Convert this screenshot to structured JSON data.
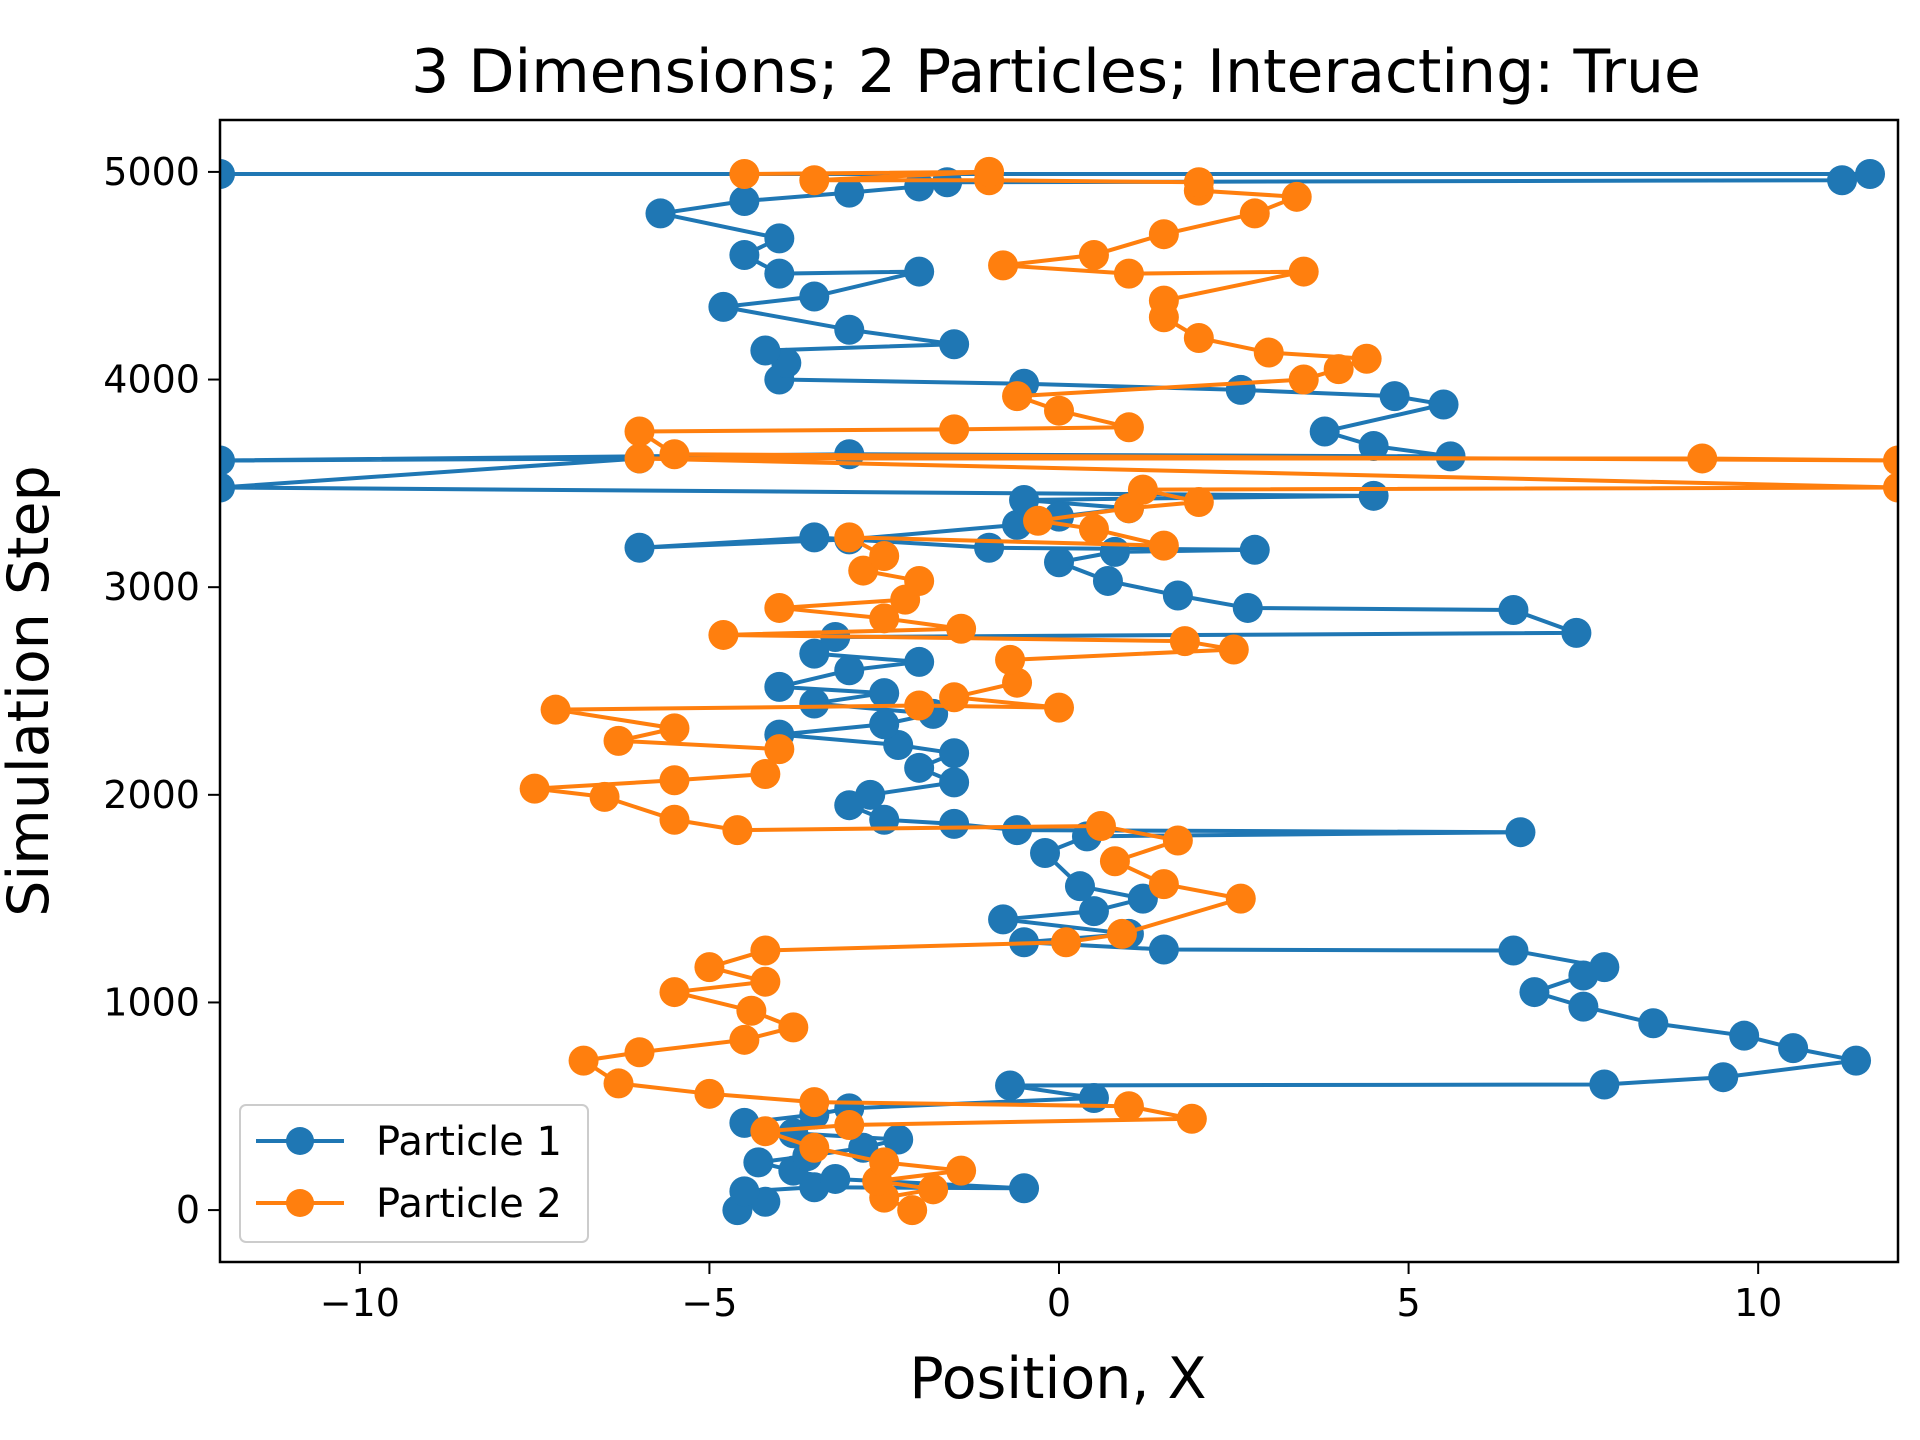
{
  "chart_data": {
    "type": "line",
    "title": "3 Dimensions; 2 Particles; Interacting: True",
    "xlabel": "Position, X",
    "ylabel": "Simulation Step",
    "xlim": [
      -12,
      12
    ],
    "ylim": [
      -250,
      5250
    ],
    "xticks": [
      -10,
      -5,
      0,
      5,
      10
    ],
    "xtick_labels": [
      "−10",
      "−5",
      "0",
      "5",
      "10"
    ],
    "yticks": [
      0,
      1000,
      2000,
      3000,
      4000,
      5000
    ],
    "ytick_labels": [
      "0",
      "1000",
      "2000",
      "3000",
      "4000",
      "5000"
    ],
    "grid": false,
    "legend_position": "lower-left",
    "markers": true,
    "series": [
      {
        "name": "Particle 1",
        "color": "#1f77b4",
        "points": [
          [
            -4.6,
            0
          ],
          [
            -4.2,
            40
          ],
          [
            -4.5,
            90
          ],
          [
            -3.5,
            110
          ],
          [
            -0.5,
            105
          ],
          [
            -3.2,
            150
          ],
          [
            -3.8,
            190
          ],
          [
            -4.3,
            230
          ],
          [
            -3.6,
            260
          ],
          [
            -2.8,
            300
          ],
          [
            -2.3,
            340
          ],
          [
            -3.8,
            370
          ],
          [
            -4.5,
            420
          ],
          [
            -3.5,
            460
          ],
          [
            -3.0,
            490
          ],
          [
            0.5,
            540
          ],
          [
            -0.7,
            600
          ],
          [
            7.8,
            605
          ],
          [
            9.5,
            640
          ],
          [
            11.4,
            720
          ],
          [
            10.5,
            780
          ],
          [
            9.8,
            840
          ],
          [
            8.5,
            900
          ],
          [
            7.5,
            980
          ],
          [
            6.8,
            1050
          ],
          [
            7.5,
            1130
          ],
          [
            7.8,
            1170
          ],
          [
            6.5,
            1250
          ],
          [
            1.5,
            1255
          ],
          [
            -0.5,
            1290
          ],
          [
            1.0,
            1330
          ],
          [
            -0.8,
            1400
          ],
          [
            0.5,
            1440
          ],
          [
            1.2,
            1500
          ],
          [
            0.3,
            1560
          ],
          [
            -0.2,
            1720
          ],
          [
            0.4,
            1800
          ],
          [
            6.6,
            1820
          ],
          [
            -0.6,
            1830
          ],
          [
            -1.5,
            1860
          ],
          [
            -2.5,
            1880
          ],
          [
            -3.0,
            1950
          ],
          [
            -2.7,
            2000
          ],
          [
            -1.5,
            2060
          ],
          [
            -2.0,
            2130
          ],
          [
            -1.5,
            2200
          ],
          [
            -2.3,
            2240
          ],
          [
            -4.0,
            2290
          ],
          [
            -2.5,
            2340
          ],
          [
            -1.8,
            2390
          ],
          [
            -3.5,
            2440
          ],
          [
            -2.5,
            2490
          ],
          [
            -4.0,
            2520
          ],
          [
            -3.0,
            2600
          ],
          [
            -2.0,
            2640
          ],
          [
            -3.5,
            2680
          ],
          [
            -3.2,
            2760
          ],
          [
            7.4,
            2780
          ],
          [
            6.5,
            2890
          ],
          [
            2.7,
            2900
          ],
          [
            1.7,
            2960
          ],
          [
            0.7,
            3030
          ],
          [
            0.0,
            3120
          ],
          [
            0.8,
            3170
          ],
          [
            2.8,
            3180
          ],
          [
            -1.0,
            3190
          ],
          [
            -3.5,
            3240
          ],
          [
            -6.0,
            3190
          ],
          [
            -3.0,
            3230
          ],
          [
            -0.6,
            3300
          ],
          [
            0.0,
            3340
          ],
          [
            1.0,
            3380
          ],
          [
            -0.5,
            3420
          ],
          [
            4.5,
            3440
          ],
          [
            -12.0,
            3480
          ],
          [
            -6.0,
            3620
          ],
          [
            -12.0,
            3610
          ],
          [
            -3.0,
            3640
          ],
          [
            5.6,
            3630
          ],
          [
            4.5,
            3680
          ],
          [
            3.8,
            3750
          ],
          [
            5.5,
            3880
          ],
          [
            4.8,
            3920
          ],
          [
            2.6,
            3950
          ],
          [
            -0.5,
            3980
          ],
          [
            -4.0,
            4000
          ],
          [
            -3.9,
            4080
          ],
          [
            -4.2,
            4140
          ],
          [
            -1.5,
            4170
          ],
          [
            -3.0,
            4240
          ],
          [
            -4.8,
            4350
          ],
          [
            -3.5,
            4400
          ],
          [
            -2.0,
            4520
          ],
          [
            -4.0,
            4510
          ],
          [
            -4.5,
            4600
          ],
          [
            -4.0,
            4680
          ],
          [
            -5.7,
            4800
          ],
          [
            -4.5,
            4860
          ],
          [
            -3.0,
            4900
          ],
          [
            -2.0,
            4930
          ],
          [
            -1.6,
            4950
          ],
          [
            11.2,
            4960
          ],
          [
            11.6,
            4990
          ],
          [
            -12.0,
            4990
          ]
        ]
      },
      {
        "name": "Particle 2",
        "color": "#ff7f0e",
        "points": [
          [
            -2.1,
            0
          ],
          [
            -2.5,
            60
          ],
          [
            -1.8,
            100
          ],
          [
            -2.6,
            140
          ],
          [
            -1.4,
            190
          ],
          [
            -2.5,
            230
          ],
          [
            -3.5,
            300
          ],
          [
            -4.2,
            380
          ],
          [
            -3.0,
            410
          ],
          [
            1.9,
            440
          ],
          [
            1.0,
            500
          ],
          [
            -3.5,
            520
          ],
          [
            -5.0,
            560
          ],
          [
            -6.3,
            610
          ],
          [
            -6.8,
            720
          ],
          [
            -6.0,
            760
          ],
          [
            -4.5,
            820
          ],
          [
            -3.8,
            880
          ],
          [
            -4.4,
            960
          ],
          [
            -5.5,
            1050
          ],
          [
            -4.2,
            1100
          ],
          [
            -5.0,
            1170
          ],
          [
            -4.2,
            1250
          ],
          [
            0.1,
            1290
          ],
          [
            0.9,
            1330
          ],
          [
            2.6,
            1500
          ],
          [
            1.5,
            1570
          ],
          [
            0.8,
            1680
          ],
          [
            1.7,
            1780
          ],
          [
            0.6,
            1850
          ],
          [
            -4.6,
            1830
          ],
          [
            -5.5,
            1880
          ],
          [
            -6.5,
            1990
          ],
          [
            -7.5,
            2030
          ],
          [
            -5.5,
            2070
          ],
          [
            -4.2,
            2100
          ],
          [
            -4.0,
            2220
          ],
          [
            -6.3,
            2260
          ],
          [
            -5.5,
            2320
          ],
          [
            -7.2,
            2410
          ],
          [
            -2.0,
            2430
          ],
          [
            0.0,
            2420
          ],
          [
            -1.5,
            2470
          ],
          [
            -0.6,
            2540
          ],
          [
            -0.7,
            2650
          ],
          [
            2.5,
            2700
          ],
          [
            1.8,
            2740
          ],
          [
            -4.8,
            2770
          ],
          [
            -1.4,
            2800
          ],
          [
            -2.5,
            2850
          ],
          [
            -4.0,
            2900
          ],
          [
            -2.2,
            2940
          ],
          [
            -2.0,
            3030
          ],
          [
            -2.8,
            3080
          ],
          [
            -2.5,
            3150
          ],
          [
            -3.0,
            3240
          ],
          [
            1.5,
            3200
          ],
          [
            0.5,
            3280
          ],
          [
            -0.3,
            3320
          ],
          [
            1.0,
            3380
          ],
          [
            2.0,
            3410
          ],
          [
            1.2,
            3470
          ],
          [
            12.0,
            3480
          ],
          [
            -6.0,
            3620
          ],
          [
            9.2,
            3620
          ],
          [
            12.0,
            3610
          ],
          [
            -5.5,
            3640
          ],
          [
            -6.0,
            3750
          ],
          [
            -1.5,
            3760
          ],
          [
            1.0,
            3770
          ],
          [
            0.0,
            3850
          ],
          [
            -0.6,
            3920
          ],
          [
            3.5,
            4000
          ],
          [
            4.0,
            4050
          ],
          [
            4.4,
            4100
          ],
          [
            3.0,
            4130
          ],
          [
            2.0,
            4200
          ],
          [
            1.5,
            4300
          ],
          [
            1.5,
            4380
          ],
          [
            3.5,
            4520
          ],
          [
            1.0,
            4510
          ],
          [
            -0.8,
            4550
          ],
          [
            0.5,
            4600
          ],
          [
            1.5,
            4700
          ],
          [
            2.8,
            4800
          ],
          [
            3.4,
            4880
          ],
          [
            2.0,
            4910
          ],
          [
            2.0,
            4950
          ],
          [
            -1.0,
            4960
          ],
          [
            -3.5,
            4960
          ],
          [
            -1.0,
            5000
          ],
          [
            -4.5,
            4990
          ]
        ]
      }
    ]
  }
}
